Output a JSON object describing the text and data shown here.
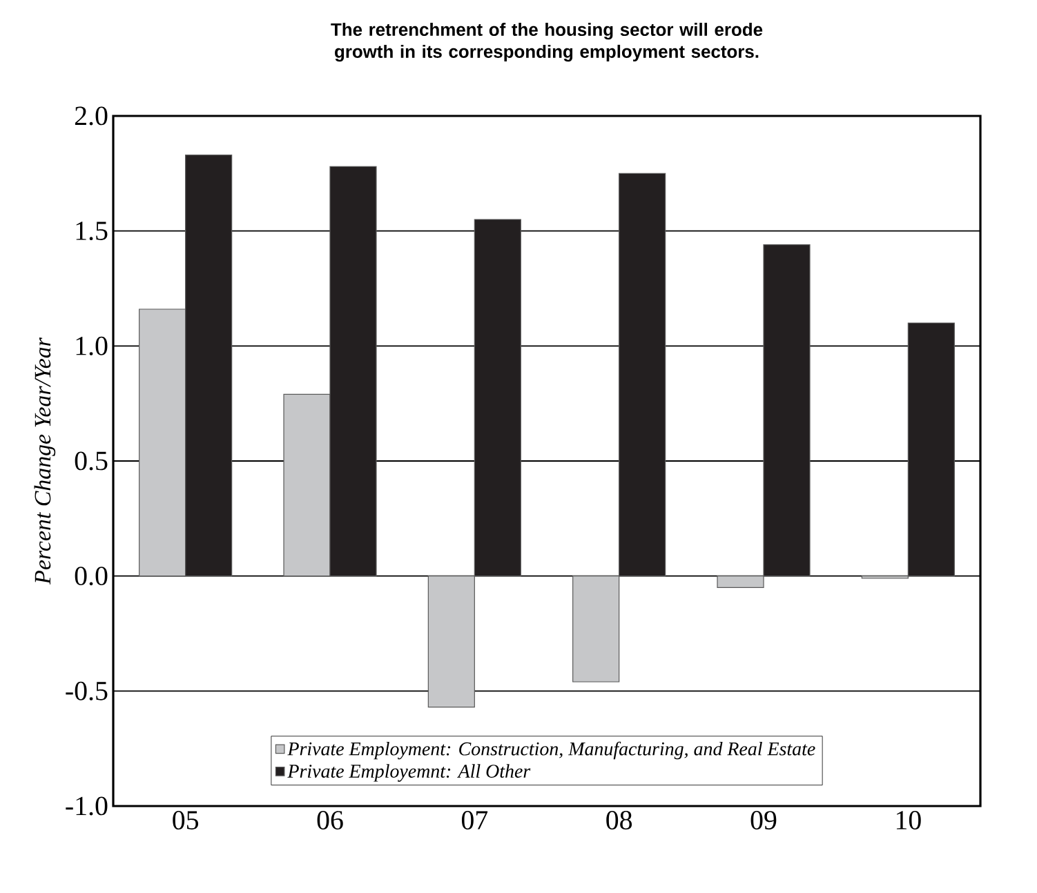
{
  "chart_data": {
    "type": "bar",
    "title": "The retrenchment of the housing sector will erode growth in its corresponding employment sectors.",
    "ylabel": "Percent Change Year/Year",
    "categories": [
      "05",
      "06",
      "07",
      "08",
      "09",
      "10"
    ],
    "series": [
      {
        "name": "Private Employment: Construction, Manufacturing, and Real Estate",
        "color": "#c6c7c9",
        "values": [
          1.16,
          0.79,
          -0.57,
          -0.46,
          -0.05,
          -0.01
        ]
      },
      {
        "name": "Private Employemnt: All Other",
        "color": "#231f20",
        "values": [
          1.83,
          1.78,
          1.55,
          1.75,
          1.44,
          1.1
        ]
      }
    ],
    "ylim": [
      -1.0,
      2.0
    ],
    "yticks": [
      {
        "value": -1.0,
        "label": "-1.0"
      },
      {
        "value": -0.5,
        "label": "-0.5"
      },
      {
        "value": 0.0,
        "label": "0.0"
      },
      {
        "value": 0.5,
        "label": "0.5"
      },
      {
        "value": 1.0,
        "label": "1.0"
      },
      {
        "value": 1.5,
        "label": "1.5"
      },
      {
        "value": 2.0,
        "label": "2.0"
      }
    ],
    "grid": "y",
    "legend": "bottom"
  }
}
